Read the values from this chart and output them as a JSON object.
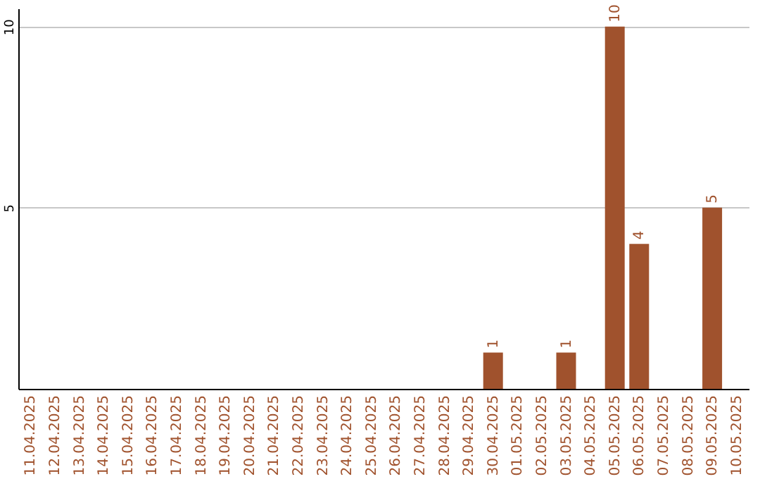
{
  "chart_data": {
    "type": "bar",
    "categories": [
      "11.04.2025",
      "12.04.2025",
      "13.04.2025",
      "14.04.2025",
      "15.04.2025",
      "16.04.2025",
      "17.04.2025",
      "18.04.2025",
      "19.04.2025",
      "20.04.2025",
      "21.04.2025",
      "22.04.2025",
      "23.04.2025",
      "24.04.2025",
      "25.04.2025",
      "26.04.2025",
      "27.04.2025",
      "28.04.2025",
      "29.04.2025",
      "30.04.2025",
      "01.05.2025",
      "02.05.2025",
      "03.05.2025",
      "04.05.2025",
      "05.05.2025",
      "06.05.2025",
      "07.05.2025",
      "08.05.2025",
      "09.05.2025",
      "10.05.2025"
    ],
    "values": [
      0,
      0,
      0,
      0,
      0,
      0,
      0,
      0,
      0,
      0,
      0,
      0,
      0,
      0,
      0,
      0,
      0,
      0,
      0,
      1,
      0,
      0,
      1,
      0,
      10,
      4,
      0,
      0,
      5,
      0
    ],
    "value_labels": [
      null,
      null,
      null,
      null,
      null,
      null,
      null,
      null,
      null,
      null,
      null,
      null,
      null,
      null,
      null,
      null,
      null,
      null,
      null,
      "1",
      null,
      null,
      "1",
      null,
      "10",
      "4",
      null,
      null,
      "5",
      null
    ],
    "color": "#a0522d",
    "ylim": [
      0,
      10.5
    ],
    "yticks": [
      5,
      10
    ],
    "grid": "y"
  }
}
